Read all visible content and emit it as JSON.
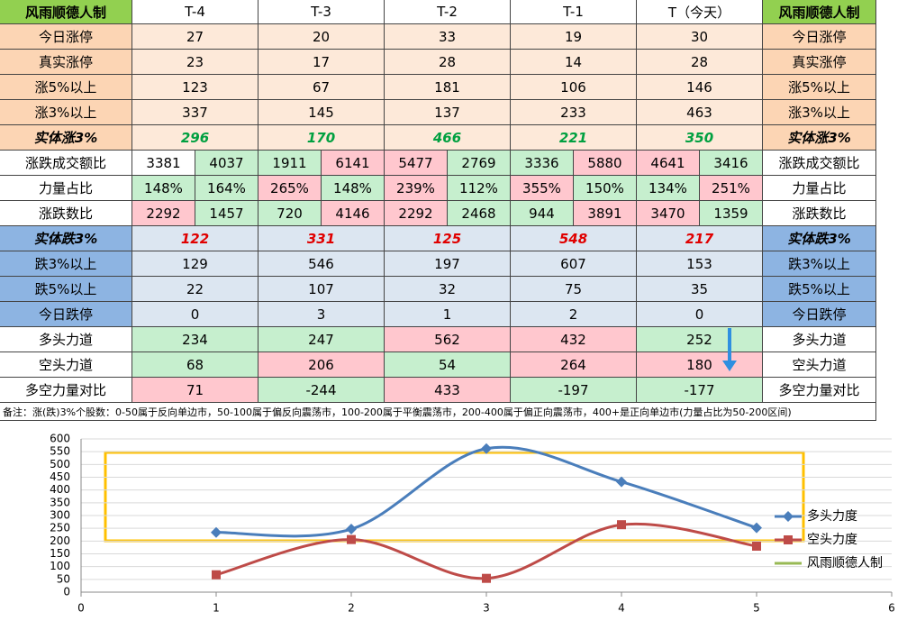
{
  "table": {
    "header": [
      "风雨顺德人制",
      "T-4",
      "T-3",
      "T-2",
      "T-1",
      "T（今天）"
    ],
    "styles": {
      "up": {
        "label": "#fcd5b4",
        "cell": "#fde9d9"
      },
      "mid": {
        "label": "#ffffff",
        "cell": "#ffffff"
      },
      "down": {
        "label": "#8db4e2",
        "cell": "#dce6f1"
      },
      "power": {
        "label": "#ffffff",
        "cell": "#ffffff"
      }
    },
    "rows": [
      {
        "label": "今日涨停",
        "section": "up",
        "values": [
          27,
          20,
          33,
          19,
          30
        ]
      },
      {
        "label": "真实涨停",
        "section": "up",
        "values": [
          23,
          17,
          28,
          14,
          28
        ]
      },
      {
        "label": "涨5%以上",
        "section": "up",
        "values": [
          123,
          67,
          181,
          106,
          146
        ]
      },
      {
        "label": "涨3%以上",
        "section": "up",
        "values": [
          337,
          145,
          137,
          233,
          463
        ]
      },
      {
        "label": "实体涨3%",
        "section": "up",
        "emphasis": "#00a040",
        "values": [
          296,
          170,
          466,
          221,
          350
        ]
      },
      {
        "label": "涨跌成交额比",
        "section": "mid",
        "values": [
          [
            3381,
            4037
          ],
          [
            1911,
            6141
          ],
          [
            5477,
            2769
          ],
          [
            3336,
            5880
          ],
          [
            4641,
            3416
          ]
        ],
        "fills": [
          [
            "#ffffff",
            "#c6efce"
          ],
          [
            "#c6efce",
            "#ffc7ce"
          ],
          [
            "#ffc7ce",
            "#c6efce"
          ],
          [
            "#c6efce",
            "#ffc7ce"
          ],
          [
            "#ffc7ce",
            "#c6efce"
          ]
        ]
      },
      {
        "label": "力量占比",
        "section": "mid",
        "values": [
          [
            "148%",
            "164%"
          ],
          [
            "265%",
            "148%"
          ],
          [
            "239%",
            "112%"
          ],
          [
            "355%",
            "150%"
          ],
          [
            "134%",
            "251%"
          ]
        ],
        "fills": [
          [
            "#c6efce",
            "#c6efce"
          ],
          [
            "#ffc7ce",
            "#c6efce"
          ],
          [
            "#ffc7ce",
            "#c6efce"
          ],
          [
            "#ffc7ce",
            "#c6efce"
          ],
          [
            "#c6efce",
            "#ffc7ce"
          ]
        ]
      },
      {
        "label": "涨跌数比",
        "section": "mid",
        "values": [
          [
            2292,
            1457
          ],
          [
            720,
            4146
          ],
          [
            2292,
            2468
          ],
          [
            944,
            3891
          ],
          [
            3470,
            1359
          ]
        ],
        "fills": [
          [
            "#ffc7ce",
            "#c6efce"
          ],
          [
            "#c6efce",
            "#ffc7ce"
          ],
          [
            "#ffc7ce",
            "#c6efce"
          ],
          [
            "#c6efce",
            "#ffc7ce"
          ],
          [
            "#ffc7ce",
            "#c6efce"
          ]
        ]
      },
      {
        "label": "实体跌3%",
        "section": "down",
        "emphasis": "#e00000",
        "values": [
          122,
          331,
          125,
          548,
          217
        ]
      },
      {
        "label": "跌3%以上",
        "section": "down",
        "values": [
          129,
          546,
          197,
          607,
          153
        ]
      },
      {
        "label": "跌5%以上",
        "section": "down",
        "values": [
          22,
          107,
          32,
          75,
          35
        ]
      },
      {
        "label": "今日跌停",
        "section": "down",
        "values": [
          0,
          3,
          1,
          2,
          0
        ]
      },
      {
        "label": "多头力道",
        "section": "power",
        "values": [
          234,
          247,
          562,
          432,
          252
        ],
        "fills": [
          "#c6efce",
          "#c6efce",
          "#ffc7ce",
          "#ffc7ce",
          "#c6efce"
        ]
      },
      {
        "label": "空头力道",
        "section": "power",
        "values": [
          68,
          206,
          54,
          264,
          180
        ],
        "fills": [
          "#c6efce",
          "#ffc7ce",
          "#c6efce",
          "#ffc7ce",
          "#ffc7ce"
        ]
      },
      {
        "label": "多空力量对比",
        "section": "power",
        "values": [
          71,
          -244,
          433,
          -197,
          -177
        ],
        "fills": [
          "#ffc7ce",
          "#c6efce",
          "#ffc7ce",
          "#c6efce",
          "#c6efce"
        ]
      }
    ],
    "note": "备注：涨(跌)3%个股数：0-50属于反向单边市，50-100属于偏反向震荡市，100-200属于平衡震荡市，200-400属于偏正向震荡市，400+是正向单边市(力量占比为50-200区间)"
  },
  "chart_data": {
    "type": "line",
    "x": [
      1,
      2,
      3,
      4,
      5
    ],
    "series": [
      {
        "name": "多头力度",
        "color": "#4a7ebb",
        "marker": "diamond",
        "values": [
          234,
          247,
          562,
          432,
          252
        ]
      },
      {
        "name": "空头力度",
        "color": "#be4b48",
        "marker": "square",
        "values": [
          68,
          206,
          54,
          264,
          180
        ]
      },
      {
        "name": "风雨顺德人制",
        "color": "#98b954"
      }
    ],
    "xlim": [
      0,
      6
    ],
    "xticks": [
      0,
      1,
      2,
      3,
      4,
      5,
      6
    ],
    "ylim": [
      0,
      600
    ],
    "yticks": [
      0,
      50,
      100,
      150,
      200,
      250,
      300,
      350,
      400,
      450,
      500,
      550,
      600
    ],
    "grid": true,
    "smooth": true
  }
}
